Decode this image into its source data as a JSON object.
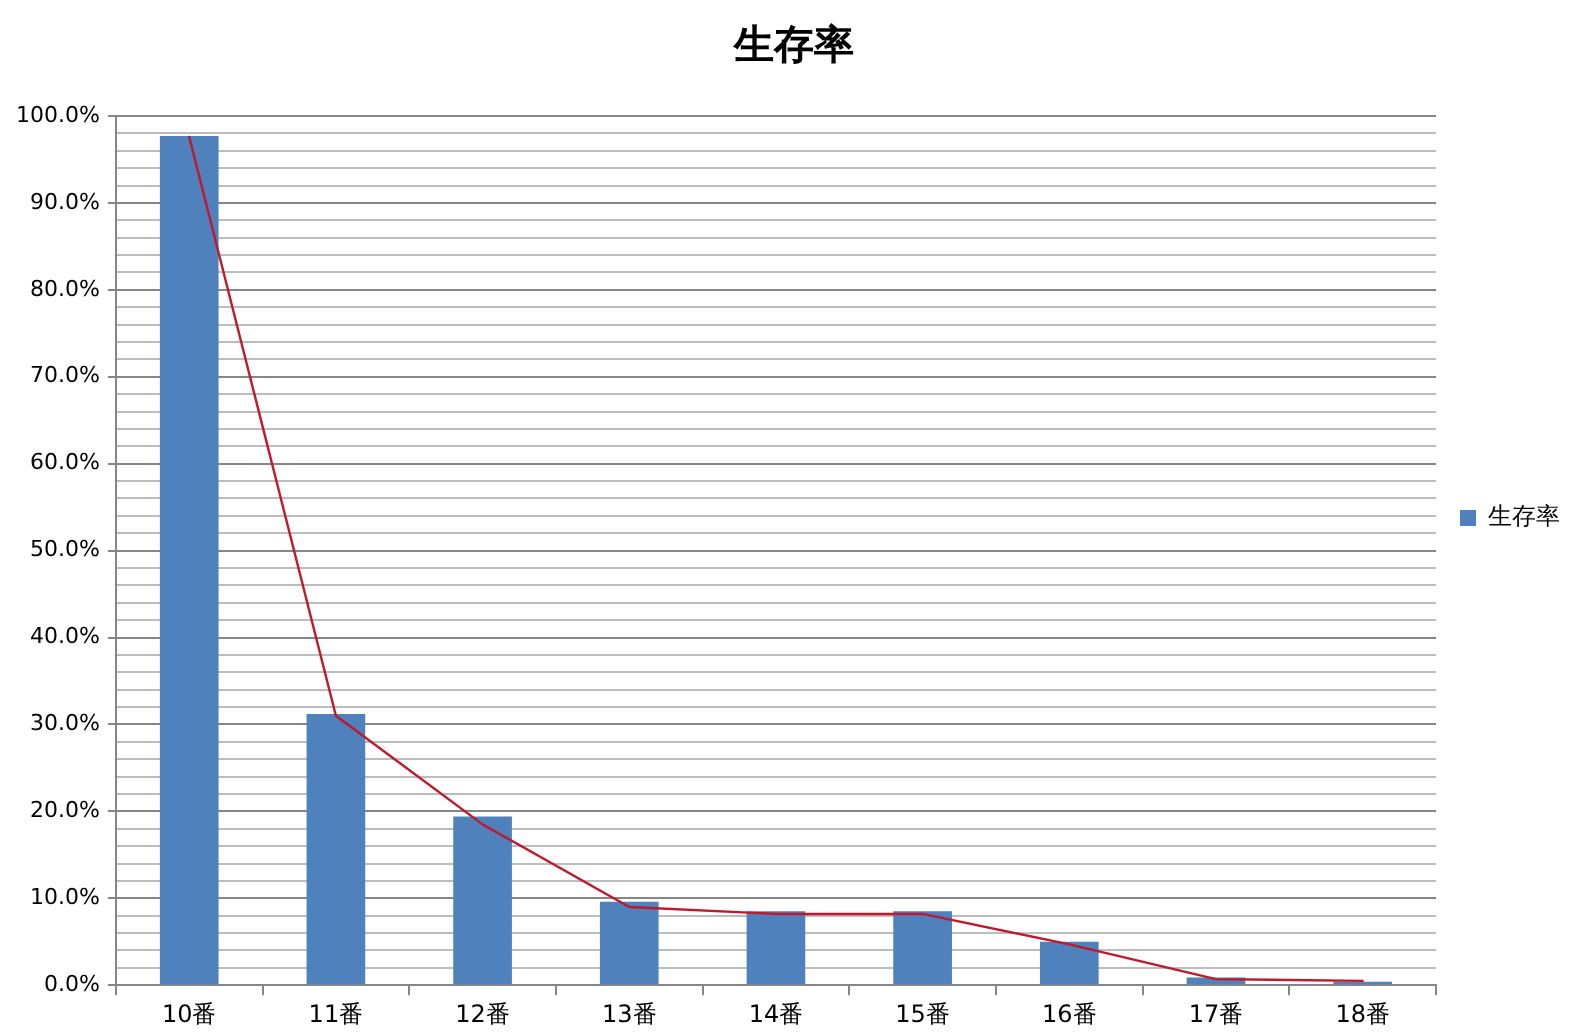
{
  "chart_data": {
    "type": "bar",
    "title": "生存率",
    "categories": [
      "10番",
      "11番",
      "12番",
      "13番",
      "14番",
      "15番",
      "16番",
      "17番",
      "18番"
    ],
    "series": [
      {
        "name": "生存率",
        "color": "#4f81bd",
        "values": [
          97.7,
          31.2,
          19.4,
          9.6,
          8.5,
          8.5,
          5.0,
          0.9,
          0.4
        ]
      },
      {
        "type": "line",
        "color": "#c0182c",
        "values": [
          97.6,
          31.0,
          18.5,
          9.0,
          8.2,
          8.2,
          4.7,
          0.7,
          0.5
        ],
        "marker": "none",
        "line_style": "solid"
      }
    ],
    "ylim": [
      0,
      100
    ],
    "yticks": [
      {
        "value": 0,
        "label": "0.0%"
      },
      {
        "value": 2,
        "label": null
      },
      {
        "value": 4,
        "label": null
      },
      {
        "value": 6,
        "label": null
      },
      {
        "value": 8,
        "label": null
      },
      {
        "value": 10,
        "label": "10.0%"
      },
      {
        "value": 12,
        "label": null
      },
      {
        "value": 14,
        "label": null
      },
      {
        "value": 16,
        "label": null
      },
      {
        "value": 18,
        "label": null
      },
      {
        "value": 20,
        "label": "20.0%"
      },
      {
        "value": 22,
        "label": null
      },
      {
        "value": 24,
        "label": null
      },
      {
        "value": 26,
        "label": null
      },
      {
        "value": 28,
        "label": null
      },
      {
        "value": 30,
        "label": "30.0%"
      },
      {
        "value": 32,
        "label": null
      },
      {
        "value": 34,
        "label": null
      },
      {
        "value": 36,
        "label": null
      },
      {
        "value": 38,
        "label": null
      },
      {
        "value": 40,
        "label": "40.0%"
      },
      {
        "value": 42,
        "label": null
      },
      {
        "value": 44,
        "label": null
      },
      {
        "value": 46,
        "label": null
      },
      {
        "value": 48,
        "label": null
      },
      {
        "value": 50,
        "label": "50.0%"
      },
      {
        "value": 52,
        "label": null
      },
      {
        "value": 54,
        "label": null
      },
      {
        "value": 56,
        "label": null
      },
      {
        "value": 58,
        "label": null
      },
      {
        "value": 60,
        "label": "60.0%"
      },
      {
        "value": 62,
        "label": null
      },
      {
        "value": 64,
        "label": null
      },
      {
        "value": 66,
        "label": null
      },
      {
        "value": 68,
        "label": null
      },
      {
        "value": 70,
        "label": "70.0%"
      },
      {
        "value": 72,
        "label": null
      },
      {
        "value": 74,
        "label": null
      },
      {
        "value": 76,
        "label": null
      },
      {
        "value": 78,
        "label": null
      },
      {
        "value": 80,
        "label": "80.0%"
      },
      {
        "value": 82,
        "label": null
      },
      {
        "value": 84,
        "label": null
      },
      {
        "value": 86,
        "label": null
      },
      {
        "value": 88,
        "label": null
      },
      {
        "value": 90,
        "label": "90.0%"
      },
      {
        "value": 92,
        "label": null
      },
      {
        "value": 94,
        "label": null
      },
      {
        "value": 96,
        "label": null
      },
      {
        "value": 98,
        "label": null
      },
      {
        "value": 100,
        "label": "100.0%"
      }
    ],
    "grid": "y",
    "legend": "right"
  }
}
